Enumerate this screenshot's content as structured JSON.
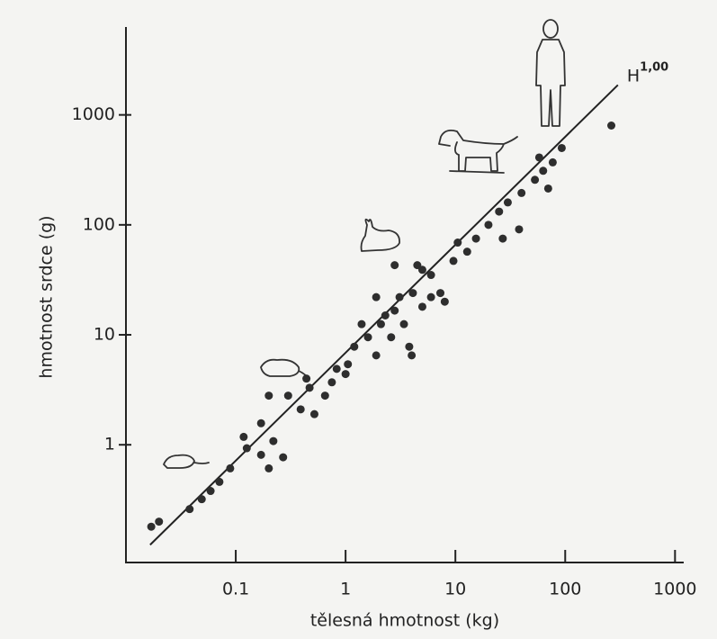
{
  "chart_data": {
    "type": "scatter",
    "xlabel": "tělesná hmotnost (kg)",
    "ylabel": "hmotnost srdce (g)",
    "xscale": "log",
    "yscale": "log",
    "xlim": [
      0.01,
      1200
    ],
    "ylim": [
      0.085,
      6300
    ],
    "xticks": [
      0.1,
      1,
      10,
      100,
      1000
    ],
    "yticks": [
      1,
      10,
      100,
      1000
    ],
    "color": "#2e2e2e",
    "x": [
      0.017,
      0.02,
      0.038,
      0.049,
      0.059,
      0.071,
      0.089,
      0.126,
      0.118,
      0.17,
      0.17,
      0.2,
      0.22,
      0.27,
      0.2,
      0.3,
      0.39,
      0.47,
      0.52,
      0.65,
      0.75,
      1.05,
      1.2,
      1.6,
      1.9,
      2.1,
      2.6,
      2.8,
      3.4,
      3.8,
      3.1,
      4.1,
      5.0,
      6.0,
      7.3,
      8.0,
      4.5,
      6.0,
      2.8,
      1.9,
      12.8,
      15.4,
      20,
      25,
      30,
      38,
      40,
      53,
      63,
      77,
      93,
      70,
      263,
      9.6,
      10.5,
      27,
      1.4,
      1.0,
      0.83,
      0.44,
      4.0,
      5.0,
      2.3,
      58
    ],
    "values": [
      0.18,
      0.2,
      0.26,
      0.32,
      0.38,
      0.46,
      0.61,
      0.93,
      1.18,
      1.57,
      0.81,
      0.61,
      1.08,
      0.77,
      2.8,
      2.8,
      2.1,
      3.3,
      1.9,
      2.8,
      3.7,
      5.4,
      7.8,
      9.5,
      6.5,
      12.5,
      9.5,
      16.6,
      12.5,
      7.8,
      22,
      24,
      18,
      22,
      24,
      20,
      43,
      35,
      43,
      22,
      57,
      75,
      100,
      132,
      160,
      91,
      195,
      257,
      310,
      370,
      500,
      214,
      800,
      47,
      69,
      75,
      12.5,
      4.4,
      4.9,
      4.0,
      6.5,
      39,
      15,
      410
    ],
    "fit_line": {
      "x": [
        0.0166,
        302
      ],
      "values": [
        0.123,
        1870
      ]
    },
    "annotation": {
      "text": "H",
      "superscript": "1,00"
    }
  }
}
